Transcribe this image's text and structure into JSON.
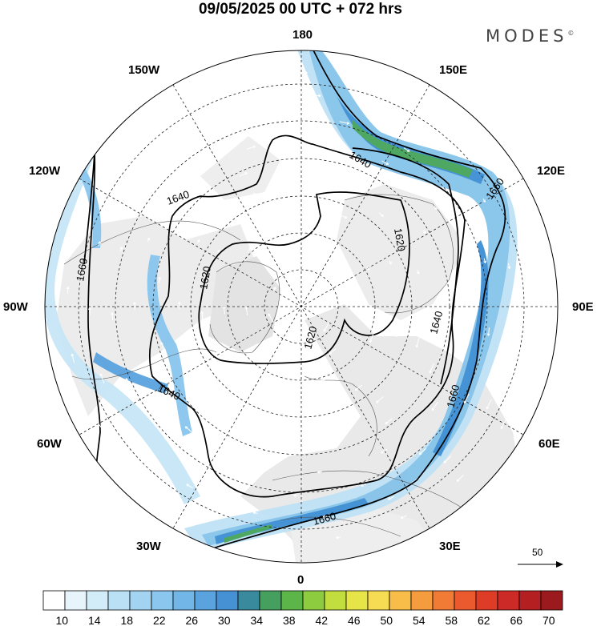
{
  "title": "09/05/2025  00 UTC  + 072 hrs",
  "brand": "MODES",
  "brand_mark": "©",
  "longitude_labels": {
    "deg180": "180",
    "deg0": "0",
    "w150": "150W",
    "e150": "150E",
    "w120": "120W",
    "e120": "120E",
    "w90": "90W",
    "e90": "90E",
    "w60": "60W",
    "e60": "60E",
    "w30": "30W",
    "e30": "30E"
  },
  "contour_labels": [
    "1620",
    "1620",
    "1620",
    "1640",
    "1640",
    "1640",
    "1640",
    "1660",
    "1660",
    "1660",
    "1660"
  ],
  "vector_reference": {
    "label": "50"
  },
  "colorbar": {
    "tick_labels": [
      "10",
      "14",
      "18",
      "22",
      "26",
      "30",
      "34",
      "38",
      "42",
      "46",
      "50",
      "54",
      "58",
      "62",
      "66",
      "70"
    ],
    "colors": [
      "#ffffff",
      "#e8f4fb",
      "#d2ecf8",
      "#b9e0f5",
      "#a2d4f2",
      "#8ac6ee",
      "#72b6e8",
      "#5aa3df",
      "#4690d4",
      "#3a8a9e",
      "#45a060",
      "#5cb548",
      "#8ccc3e",
      "#c1dd3e",
      "#e7e448",
      "#f6dc52",
      "#f7bd48",
      "#f59c3e",
      "#f17a35",
      "#ea5a2e",
      "#df3c28",
      "#cc2a26",
      "#b41f22",
      "#9a1a1e"
    ]
  },
  "colors": {
    "land_gray": "#e8e8e8",
    "ocean": "#ffffff",
    "jet_light": "#c7e6f7",
    "jet_mid": "#7dbde8",
    "jet_dark": "#3c8fd3",
    "jet_core": "#3fa454",
    "contour": "#000000"
  }
}
